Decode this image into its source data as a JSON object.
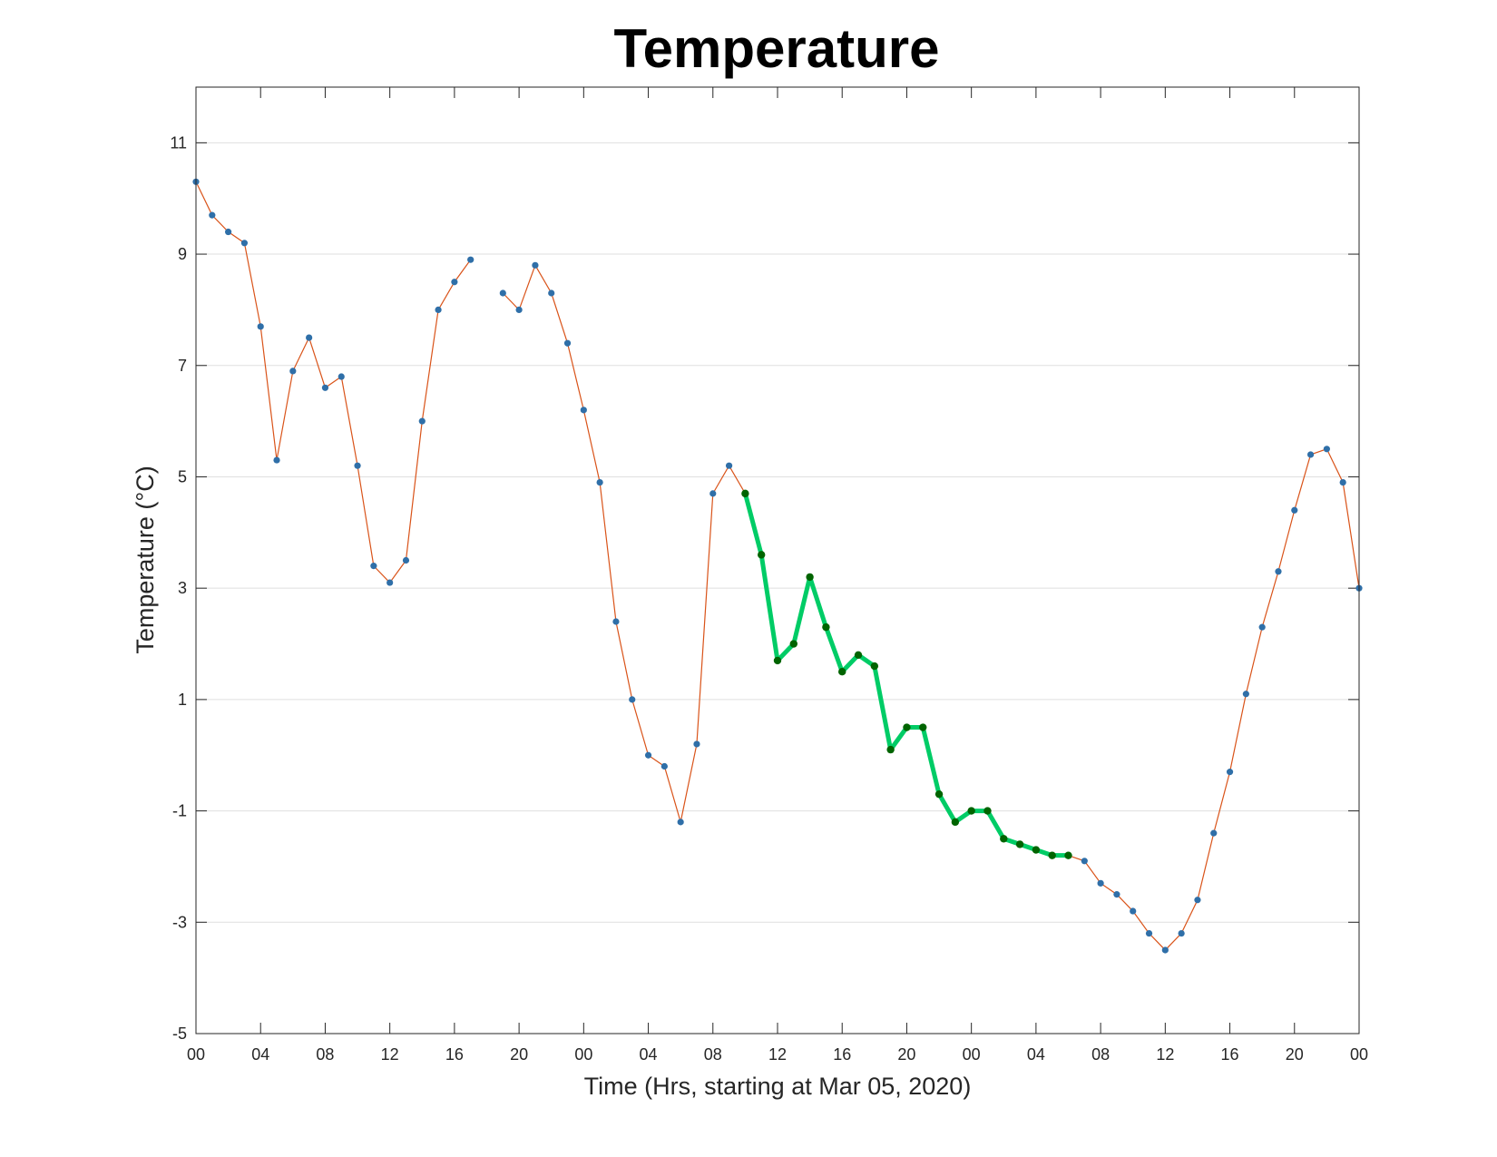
{
  "chart_data": {
    "type": "line",
    "title": "Temperature",
    "xlabel": "Time (Hrs, starting at Mar 05, 2020)",
    "ylabel": "Temperature (°C)",
    "ylim": [
      -5,
      12
    ],
    "xlim": [
      "2020-03-05 00:00",
      "2020-03-08 00:00"
    ],
    "y_ticks": [
      -5,
      -3,
      -1,
      1,
      3,
      5,
      7,
      9,
      11
    ],
    "y_tick_labels": [
      "-5",
      "-3",
      "-1",
      "1",
      "3",
      "5",
      "7",
      "9",
      "11"
    ],
    "x_tick_labels": [
      "00",
      "04",
      "08",
      "12",
      "16",
      "20",
      "00",
      "04",
      "08",
      "12",
      "16",
      "20",
      "00",
      "04",
      "08",
      "12",
      "16",
      "20",
      "00"
    ],
    "grid": "horizontal",
    "colors": {
      "line": "#D95319",
      "marker": "#2F6FA8",
      "highlight_line": "#00CC66",
      "highlight_marker": "#006400",
      "grid": "#DFDFDF",
      "axes": "#262626"
    },
    "series": [
      {
        "values": [
          10.3,
          9.7,
          9.4,
          9.2,
          7.7,
          5.3,
          6.9,
          7.5,
          6.6,
          6.8,
          5.2,
          3.4,
          3.1,
          3.5,
          6.0,
          8.0,
          8.5,
          8.9,
          null,
          8.3,
          8.0,
          8.8,
          8.3,
          7.4,
          6.2,
          4.9,
          2.4,
          1.0,
          0.0,
          -0.2,
          -1.2,
          0.2,
          4.7,
          5.2,
          4.7,
          3.6,
          1.7,
          2.0,
          3.2,
          2.3,
          1.5,
          1.8,
          1.6,
          0.1,
          0.5,
          0.5,
          -0.7,
          -1.2,
          -1.0,
          -1.0,
          -1.5,
          -1.6,
          -1.7,
          -1.8,
          -1.8,
          -1.9,
          -2.3,
          -2.5,
          -2.8,
          -3.2,
          -3.5,
          -3.2,
          -2.6,
          -1.4,
          -0.3,
          1.1,
          2.3,
          3.3,
          4.4,
          5.4,
          5.5,
          4.9,
          3.0
        ]
      }
    ],
    "highlight_range": {
      "start_hour": 34,
      "end_hour": 54
    }
  }
}
